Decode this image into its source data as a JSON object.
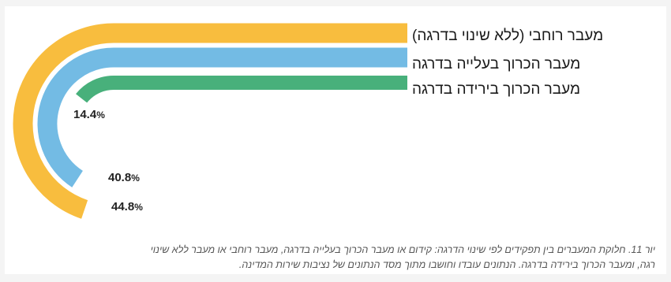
{
  "chart_data": {
    "type": "radial-bar",
    "scale_max": 100,
    "series": [
      {
        "name": "מעבר רוחבי (ללא שינוי בדרגה)",
        "value": 44.8,
        "value_text": "44.8",
        "unit": "%",
        "color": "#f8bd3e"
      },
      {
        "name": "מעבר הכרוך בעלייה בדרגה",
        "value": 40.8,
        "value_text": "40.8",
        "unit": "%",
        "color": "#73bbe4"
      },
      {
        "name": "מעבר הכרוך בירידה בדרגה",
        "value": 14.4,
        "value_text": "14.4",
        "unit": "%",
        "color": "#48b07b"
      }
    ]
  },
  "caption": {
    "line1": "יור 11. חלוקת המעברים בין תפקידים לפי שינוי הדרגה: קידום או מעבר הכרוך בעלייה בדרגה, מעבר רוחבי או מעבר ללא שינוי",
    "line2": "רגה, ומעבר הכרוך בירידה בדרגה. הנתונים עובדו וחושבו מתוך מסד הנתונים של נציבות שירות המדינה."
  }
}
